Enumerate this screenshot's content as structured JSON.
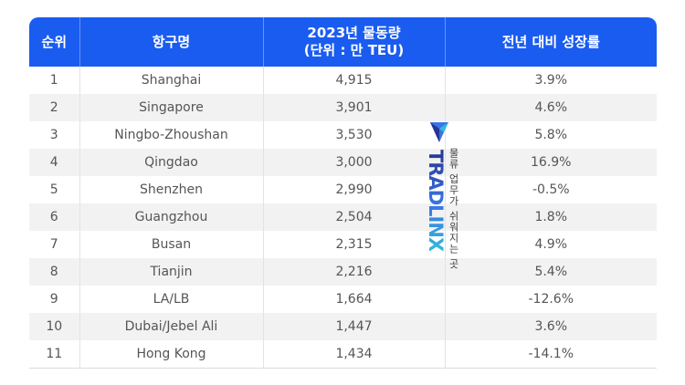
{
  "table": {
    "headers": {
      "rank": "순위",
      "port": "항구명",
      "volume_line1": "2023년 물동량",
      "volume_line2": "(단위 : 만 TEU)",
      "growth": "전년 대비 성장률"
    },
    "rows": [
      {
        "rank": "1",
        "port": "Shanghai",
        "volume": "4,915",
        "growth": "3.9%"
      },
      {
        "rank": "2",
        "port": "Singapore",
        "volume": "3,901",
        "growth": "4.6%"
      },
      {
        "rank": "3",
        "port": "Ningbo-Zhoushan",
        "volume": "3,530",
        "growth": "5.8%"
      },
      {
        "rank": "4",
        "port": "Qingdao",
        "volume": "3,000",
        "growth": "16.9%"
      },
      {
        "rank": "5",
        "port": "Shenzhen",
        "volume": "2,990",
        "growth": "-0.5%"
      },
      {
        "rank": "6",
        "port": "Guangzhou",
        "volume": "2,504",
        "growth": "1.8%"
      },
      {
        "rank": "7",
        "port": "Busan",
        "volume": "2,315",
        "growth": "4.9%"
      },
      {
        "rank": "8",
        "port": "Tianjin",
        "volume": "2,216",
        "growth": "5.4%"
      },
      {
        "rank": "9",
        "port": "LA/LB",
        "volume": "1,664",
        "growth": "-12.6%"
      },
      {
        "rank": "10",
        "port": "Dubai/Jebel Ali",
        "volume": "1,447",
        "growth": "3.6%"
      },
      {
        "rank": "11",
        "port": "Hong Kong",
        "volume": "1,434",
        "growth": "-14.1%"
      }
    ]
  },
  "watermark": {
    "brand": "TRADLINX",
    "tagline": "물류 업무가 쉬워지는 곳"
  },
  "colors": {
    "header_bg": "#1a5cf0",
    "header_text": "#ffffff",
    "stripe": "#f2f2f2",
    "cell_text": "#555555"
  }
}
